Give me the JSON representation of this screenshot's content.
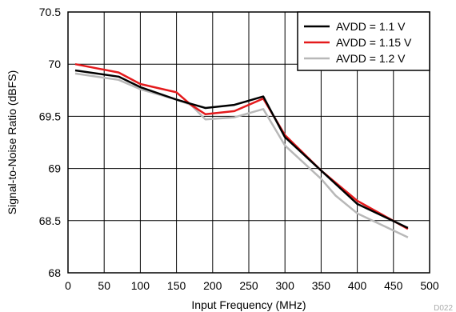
{
  "chart_data": {
    "type": "line",
    "xlabel": "Input Frequency (MHz)",
    "ylabel": "Signal-to-Noise Ratio (dBFS)",
    "xlim": [
      0,
      500
    ],
    "ylim": [
      68,
      70.5
    ],
    "x_ticks": [
      "0",
      "50",
      "100",
      "150",
      "200",
      "250",
      "300",
      "350",
      "400",
      "450",
      "500"
    ],
    "y_ticks": [
      "68",
      "68.5",
      "69",
      "69.5",
      "70",
      "70.5"
    ],
    "grid": true,
    "legend_position": "top-right",
    "series": [
      {
        "name": "AVDD = 1.1 V",
        "color": "#000000",
        "x": [
          10,
          70,
          100,
          150,
          170,
          190,
          230,
          270,
          300,
          350,
          400,
          470
        ],
        "y": [
          69.94,
          69.88,
          69.78,
          69.66,
          69.62,
          69.58,
          69.61,
          69.69,
          69.3,
          68.98,
          68.66,
          68.43
        ]
      },
      {
        "name": "AVDD = 1.15 V",
        "color": "#e41a1c",
        "x": [
          10,
          70,
          100,
          150,
          170,
          190,
          230,
          270,
          300,
          350,
          400,
          470
        ],
        "y": [
          70.0,
          69.92,
          69.81,
          69.73,
          69.61,
          69.52,
          69.55,
          69.67,
          69.32,
          68.98,
          68.69,
          68.42
        ]
      },
      {
        "name": "AVDD = 1.2 V",
        "color": "#b8b8b8",
        "x": [
          10,
          70,
          100,
          150,
          170,
          190,
          230,
          270,
          300,
          350,
          370,
          400,
          470
        ],
        "y": [
          69.91,
          69.85,
          69.76,
          69.66,
          69.61,
          69.47,
          69.49,
          69.57,
          69.22,
          68.9,
          68.74,
          68.57,
          68.34
        ]
      }
    ],
    "watermark": "D022"
  }
}
